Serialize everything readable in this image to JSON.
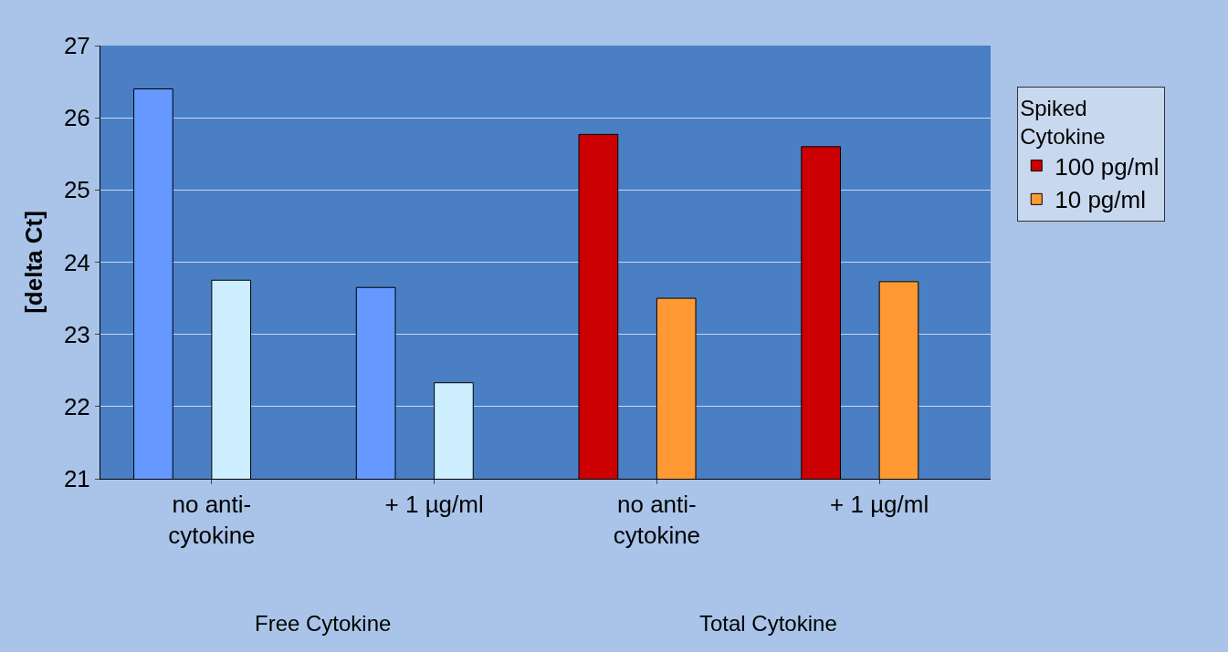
{
  "chart_data": {
    "type": "bar",
    "ylabel": "[delta Ct]",
    "legend_title": "Spiked\nCytokine",
    "categories": [
      "no anti-\ncytokine",
      "+ 1 µg/ml",
      "no anti-\ncytokine",
      "+ 1 µg/ml"
    ],
    "series": [
      {
        "name": "100 pg/ml",
        "color": "#cc0000",
        "colors": [
          "#6699ff",
          "#6699ff",
          "#cc0000",
          "#cc0000"
        ],
        "values": [
          26.4,
          23.65,
          25.77,
          25.6
        ]
      },
      {
        "name": "10 pg/ml",
        "color": "#ff9933",
        "colors": [
          "#cceeff",
          "#cceeff",
          "#ff9933",
          "#ff9933"
        ],
        "values": [
          23.75,
          22.33,
          23.5,
          23.73
        ]
      }
    ],
    "ylim": [
      21,
      27
    ],
    "yticks": [
      21,
      22,
      23,
      24,
      25,
      26,
      27
    ],
    "grid": "y",
    "legend": "right",
    "annotations": [
      "Free Cytokine",
      "Total Cytokine"
    ]
  }
}
